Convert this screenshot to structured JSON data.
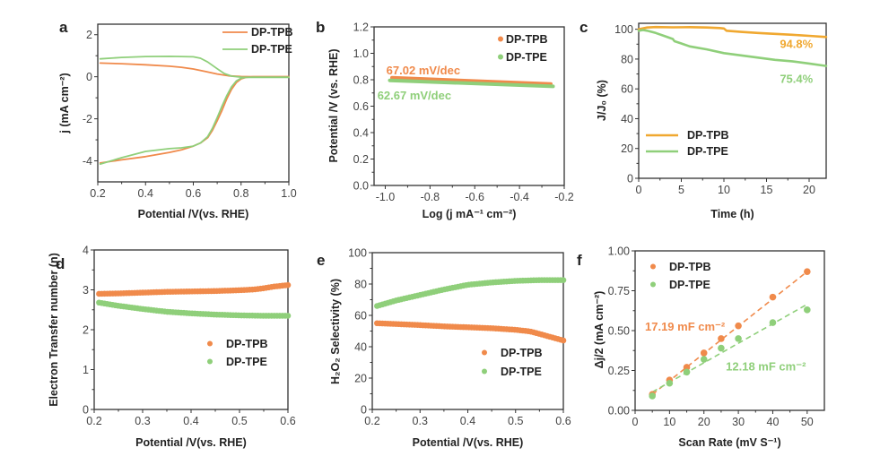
{
  "colors": {
    "tpb": "#f08a4b",
    "tpb_stability": "#f0a830",
    "tpe": "#8fcf7a",
    "axis": "#333333"
  },
  "chart_data": [
    {
      "id": "a",
      "panel_letter": "a",
      "type": "line",
      "title": "",
      "xlabel": "Potential /V(vs. RHE)",
      "ylabel": "j (mA cm⁻²)",
      "xlim": [
        0.2,
        1.0
      ],
      "ylim": [
        -5,
        2.5
      ],
      "xticks": [
        0.2,
        0.4,
        0.6,
        0.8,
        1.0
      ],
      "xtick_labels": [
        "0.2",
        "0.4",
        "0.6",
        "0.8",
        "1.0"
      ],
      "yticks": [
        2,
        0,
        -2,
        -4
      ],
      "ytick_labels": [
        "2",
        "0",
        "-2",
        "-4"
      ],
      "legend": {
        "position": "top-right",
        "entries": [
          "DP-TPB",
          "DP-TPE"
        ],
        "style": "line"
      },
      "series": [
        {
          "name": "DP-TPB (ring)",
          "legend_key": "DP-TPB",
          "color_key": "tpb",
          "x": [
            0.21,
            0.3,
            0.4,
            0.5,
            0.55,
            0.6,
            0.65,
            0.7,
            0.75,
            0.8,
            0.85,
            0.9,
            1.0
          ],
          "y": [
            0.65,
            0.62,
            0.57,
            0.5,
            0.45,
            0.37,
            0.25,
            0.13,
            0.04,
            0.01,
            0.0,
            0.0,
            0.0
          ]
        },
        {
          "name": "DP-TPE (ring)",
          "legend_key": "DP-TPE",
          "color_key": "tpe",
          "x": [
            0.21,
            0.3,
            0.4,
            0.5,
            0.6,
            0.63,
            0.66,
            0.7,
            0.73,
            0.76,
            0.8,
            0.85,
            1.0
          ],
          "y": [
            0.85,
            0.92,
            0.96,
            0.97,
            0.95,
            0.88,
            0.7,
            0.38,
            0.15,
            0.03,
            -0.02,
            -0.03,
            -0.03
          ]
        },
        {
          "name": "DP-TPB (disk)",
          "legend_key": "",
          "color_key": "tpb",
          "x": [
            0.21,
            0.3,
            0.4,
            0.5,
            0.55,
            0.6,
            0.63,
            0.66,
            0.68,
            0.7,
            0.72,
            0.74,
            0.76,
            0.78,
            0.8,
            0.82,
            0.85,
            1.0
          ],
          "y": [
            -4.1,
            -3.95,
            -3.8,
            -3.6,
            -3.48,
            -3.3,
            -3.15,
            -2.9,
            -2.55,
            -2.1,
            -1.6,
            -1.05,
            -0.6,
            -0.28,
            -0.1,
            -0.03,
            0.0,
            0.0
          ]
        },
        {
          "name": "DP-TPE (disk)",
          "legend_key": "",
          "color_key": "tpe",
          "x": [
            0.21,
            0.3,
            0.4,
            0.5,
            0.55,
            0.6,
            0.63,
            0.66,
            0.68,
            0.7,
            0.72,
            0.74,
            0.76,
            0.78,
            0.8,
            0.82,
            0.85,
            1.0
          ],
          "y": [
            -4.15,
            -3.85,
            -3.55,
            -3.42,
            -3.38,
            -3.3,
            -3.15,
            -2.85,
            -2.45,
            -1.95,
            -1.4,
            -0.9,
            -0.48,
            -0.2,
            -0.07,
            -0.03,
            -0.02,
            -0.02
          ]
        }
      ]
    },
    {
      "id": "b",
      "panel_letter": "b",
      "type": "line",
      "title": "",
      "xlabel": "Log (j mA⁻¹ cm⁻²)",
      "ylabel": "Potential /V (vs. RHE)",
      "xlim": [
        -1.05,
        -0.2
      ],
      "ylim": [
        0.0,
        1.2
      ],
      "xticks": [
        -1.0,
        -0.8,
        -0.6,
        -0.4,
        -0.2
      ],
      "xtick_labels": [
        "-1.0",
        "-0.8",
        "-0.6",
        "-0.4",
        "-0.2"
      ],
      "yticks": [
        0.0,
        0.2,
        0.4,
        0.6,
        0.8,
        1.0,
        1.2
      ],
      "ytick_labels": [
        "0.0",
        "0.2",
        "0.4",
        "0.6",
        "0.8",
        "1.0",
        "1.2"
      ],
      "legend": {
        "position": "top-right",
        "entries": [
          "DP-TPB",
          "DP-TPE"
        ],
        "style": "dot"
      },
      "annotations": [
        {
          "text": "67.02 mV/dec",
          "color_key": "tpb",
          "x": -0.83,
          "y": 0.84
        },
        {
          "text": "62.67 mV/dec",
          "color_key": "tpe",
          "x": -0.87,
          "y": 0.65
        }
      ],
      "series": [
        {
          "name": "DP-TPB",
          "legend_key": "DP-TPB",
          "color_key": "tpb",
          "x": [
            -0.97,
            -0.26
          ],
          "y": [
            0.815,
            0.768
          ]
        },
        {
          "name": "DP-TPE",
          "legend_key": "DP-TPE",
          "color_key": "tpe",
          "x": [
            -0.98,
            -0.25
          ],
          "y": [
            0.795,
            0.75
          ]
        }
      ]
    },
    {
      "id": "c",
      "panel_letter": "c",
      "type": "line",
      "title": "",
      "xlabel": "Time (h)",
      "ylabel": "J/J₀ (%)",
      "xlim": [
        0,
        22
      ],
      "ylim": [
        0,
        104
      ],
      "xticks": [
        0,
        5,
        10,
        15,
        20
      ],
      "xtick_labels": [
        "0",
        "5",
        "10",
        "15",
        "20"
      ],
      "yticks": [
        0,
        20,
        40,
        60,
        80,
        100
      ],
      "ytick_labels": [
        "0",
        "20",
        "40",
        "60",
        "80",
        "100"
      ],
      "legend": {
        "position": "bottom-left",
        "entries": [
          "DP-TPB",
          "DP-TPE"
        ],
        "style": "line"
      },
      "annotations": [
        {
          "text": "94.8%",
          "color_key": "tpb_stability",
          "x": 18.5,
          "y": 87.5
        },
        {
          "text": "75.4%",
          "color_key": "tpe",
          "x": 18.5,
          "y": 64
        }
      ],
      "series": [
        {
          "name": "DP-TPB",
          "legend_key": "DP-TPB",
          "color_key": "tpb_stability",
          "x": [
            0,
            1,
            2,
            4,
            6,
            8,
            9.5,
            10,
            10.3,
            12,
            14,
            16,
            18,
            20,
            22
          ],
          "y": [
            100,
            101.2,
            101.5,
            101.3,
            101.4,
            101.2,
            100.8,
            100.5,
            99,
            98.2,
            97.5,
            96.9,
            96.3,
            95.6,
            94.8
          ]
        },
        {
          "name": "DP-TPE",
          "legend_key": "DP-TPE",
          "color_key": "tpe",
          "x": [
            0,
            0.5,
            1,
            2,
            3,
            4,
            4.2,
            5,
            6,
            8,
            10,
            12,
            14,
            16,
            18,
            20,
            22
          ],
          "y": [
            99,
            99.5,
            99,
            97.5,
            95.5,
            93.5,
            92,
            90.5,
            88.5,
            86.5,
            84,
            82.5,
            81,
            79.5,
            78.5,
            77,
            75.4
          ]
        }
      ]
    },
    {
      "id": "d",
      "panel_letter": "d",
      "type": "scatter",
      "title": "",
      "xlabel": "Potential /V(vs. RHE)",
      "ylabel": "Electron Transfer number (n)",
      "xlim": [
        0.2,
        0.6
      ],
      "ylim": [
        0,
        4
      ],
      "xticks": [
        0.2,
        0.3,
        0.4,
        0.5,
        0.6
      ],
      "xtick_labels": [
        "0.2",
        "0.3",
        "0.4",
        "0.5",
        "0.6"
      ],
      "yticks": [
        0,
        1,
        2,
        3,
        4
      ],
      "ytick_labels": [
        "0",
        "1",
        "2",
        "3",
        "4"
      ],
      "legend": {
        "position": "center-right",
        "entries": [
          "DP-TPB",
          "DP-TPE"
        ],
        "style": "dot"
      },
      "series": [
        {
          "name": "DP-TPB",
          "legend_key": "DP-TPB",
          "color_key": "tpb",
          "x": [
            0.21,
            0.25,
            0.3,
            0.35,
            0.4,
            0.45,
            0.5,
            0.53,
            0.55,
            0.57,
            0.6
          ],
          "y": [
            2.9,
            2.91,
            2.93,
            2.95,
            2.96,
            2.97,
            2.99,
            3.01,
            3.04,
            3.08,
            3.12
          ]
        },
        {
          "name": "DP-TPE",
          "legend_key": "DP-TPE",
          "color_key": "tpe",
          "x": [
            0.21,
            0.25,
            0.3,
            0.35,
            0.4,
            0.45,
            0.5,
            0.55,
            0.6
          ],
          "y": [
            2.68,
            2.6,
            2.52,
            2.45,
            2.41,
            2.38,
            2.36,
            2.35,
            2.35
          ]
        }
      ]
    },
    {
      "id": "e",
      "panel_letter": "e",
      "type": "scatter",
      "title": "",
      "xlabel": "Potential /V(vs. RHE)",
      "ylabel": "H₂O₂ Selectivity (%)",
      "xlim": [
        0.2,
        0.6
      ],
      "ylim": [
        0,
        100
      ],
      "xticks": [
        0.2,
        0.3,
        0.4,
        0.5,
        0.6
      ],
      "xtick_labels": [
        "0.2",
        "0.3",
        "0.4",
        "0.5",
        "0.6"
      ],
      "yticks": [
        0,
        20,
        40,
        60,
        80,
        100
      ],
      "ytick_labels": [
        "0",
        "20",
        "40",
        "60",
        "80",
        "100"
      ],
      "legend": {
        "position": "bottom-right",
        "entries": [
          "DP-TPB",
          "DP-TPE"
        ],
        "style": "dot"
      },
      "series": [
        {
          "name": "DP-TPB",
          "legend_key": "DP-TPB",
          "color_key": "tpb",
          "x": [
            0.21,
            0.25,
            0.3,
            0.35,
            0.4,
            0.45,
            0.5,
            0.53,
            0.55,
            0.57,
            0.6
          ],
          "y": [
            55,
            54.5,
            53.8,
            53,
            52.4,
            51.8,
            50.8,
            49.8,
            48.2,
            46.5,
            44
          ]
        },
        {
          "name": "DP-TPE",
          "legend_key": "DP-TPE",
          "color_key": "tpe",
          "x": [
            0.21,
            0.25,
            0.3,
            0.35,
            0.4,
            0.45,
            0.5,
            0.55,
            0.6
          ],
          "y": [
            66,
            69.5,
            73,
            76.5,
            79.5,
            81,
            82,
            82.5,
            82.5
          ]
        }
      ]
    },
    {
      "id": "f",
      "panel_letter": "f",
      "type": "scatter",
      "title": "",
      "xlabel": "Scan Rate (mV S⁻¹)",
      "ylabel": "Δj/2 (mA cm⁻²)",
      "xlim": [
        0,
        55
      ],
      "ylim": [
        0,
        1.0
      ],
      "xticks": [
        0,
        10,
        20,
        30,
        40,
        50
      ],
      "xtick_labels": [
        "0",
        "10",
        "20",
        "30",
        "40",
        "50"
      ],
      "yticks": [
        0.0,
        0.25,
        0.5,
        0.75,
        1.0
      ],
      "ytick_labels": [
        "0.00",
        "0.25",
        "0.50",
        "0.75",
        "1.00"
      ],
      "legend": {
        "position": "top-left",
        "entries": [
          "DP-TPB",
          "DP-TPE"
        ],
        "style": "dot"
      },
      "annotations": [
        {
          "text": "17.19 mF cm⁻²",
          "color_key": "tpb",
          "x": 14.5,
          "y": 0.5
        },
        {
          "text": "12.18 mF cm⁻²",
          "color_key": "tpe",
          "x": 38,
          "y": 0.25
        }
      ],
      "fits": [
        {
          "name": "DP-TPB fit",
          "color_key": "tpb",
          "x": [
            5,
            50
          ],
          "y": [
            0.1,
            0.87
          ]
        },
        {
          "name": "DP-TPE fit",
          "color_key": "tpe",
          "x": [
            5,
            50
          ],
          "y": [
            0.115,
            0.665
          ]
        }
      ],
      "series": [
        {
          "name": "DP-TPB",
          "legend_key": "DP-TPB",
          "color_key": "tpb",
          "x": [
            5,
            10,
            15,
            20,
            25,
            30,
            40,
            50
          ],
          "y": [
            0.1,
            0.19,
            0.27,
            0.36,
            0.45,
            0.53,
            0.71,
            0.87
          ]
        },
        {
          "name": "DP-TPE",
          "legend_key": "DP-TPE",
          "color_key": "tpe",
          "x": [
            5,
            10,
            15,
            20,
            25,
            30,
            40,
            50
          ],
          "y": [
            0.09,
            0.17,
            0.24,
            0.32,
            0.39,
            0.45,
            0.55,
            0.63
          ]
        }
      ]
    }
  ]
}
